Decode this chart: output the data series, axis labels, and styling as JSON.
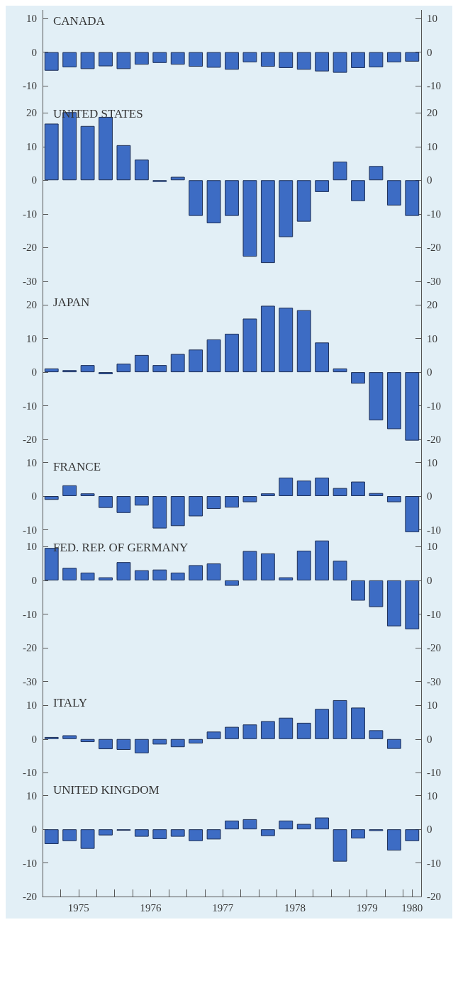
{
  "chart_data": [
    {
      "type": "bar",
      "title": "CANADA",
      "color": "#3d6cc4",
      "tick_labels": "y",
      "xlim": [
        1975,
        1980.25
      ],
      "ylim": [
        -15,
        12.5
      ],
      "yticks": [
        -10,
        0,
        10
      ],
      "y2lim": [
        -15,
        12.5
      ],
      "y2ticks": [
        -10,
        0,
        10
      ],
      "x": [
        1975.125,
        1975.375,
        1975.625,
        1975.875,
        1976.125,
        1976.375,
        1976.625,
        1976.875,
        1977.125,
        1977.375,
        1977.625,
        1977.875,
        1978.125,
        1978.375,
        1978.625,
        1978.875,
        1979.125,
        1979.375,
        1979.625,
        1979.875,
        1980.125
      ],
      "values": [
        -5.5,
        -4.5,
        -5,
        -4.2,
        -5,
        -3.7,
        -3.2,
        -3.7,
        -4.3,
        -4.6,
        -5.2,
        -3,
        -4.3,
        -4.7,
        -5.2,
        -5.7,
        -6.1,
        -4.7,
        -4.5,
        -3,
        -2.8
      ]
    },
    {
      "type": "bar",
      "title": "UNITED STATES",
      "color": "#3d6cc4",
      "tick_labels": "y",
      "xlim": [
        1975,
        1980.25
      ],
      "ylim": [
        -33,
        23
      ],
      "yticks": [
        -30,
        -20,
        -10,
        0,
        10,
        20
      ],
      "y2lim": [
        -33,
        23
      ],
      "y2ticks": [
        -30,
        -20,
        -10,
        0,
        10,
        20
      ],
      "x": [
        1975.125,
        1975.375,
        1975.625,
        1975.875,
        1976.125,
        1976.375,
        1976.625,
        1976.875,
        1977.125,
        1977.375,
        1977.625,
        1977.875,
        1978.125,
        1978.375,
        1978.625,
        1978.875,
        1979.125,
        1979.375,
        1979.625,
        1979.875,
        1980.125
      ],
      "values": [
        16.8,
        20.2,
        16.1,
        18.8,
        10.4,
        6.1,
        -0.5,
        1,
        -10.6,
        -12.8,
        -10.6,
        -22.7,
        -24.6,
        -16.9,
        -12.3,
        -3.5,
        5.5,
        -6.2,
        4.2,
        -7.5,
        -10.6
      ]
    },
    {
      "type": "bar",
      "title": "JAPAN",
      "color": "#3d6cc4",
      "tick_labels": "y",
      "xlim": [
        1975,
        1980.25
      ],
      "ylim": [
        -25,
        24
      ],
      "yticks": [
        -20,
        -10,
        0,
        10,
        20
      ],
      "y2lim": [
        -25,
        24
      ],
      "y2ticks": [
        -20,
        -10,
        0,
        10,
        20
      ],
      "x": [
        1975.125,
        1975.375,
        1975.625,
        1975.875,
        1976.125,
        1976.375,
        1976.625,
        1976.875,
        1977.125,
        1977.375,
        1977.625,
        1977.875,
        1978.125,
        1978.375,
        1978.625,
        1978.875,
        1979.125,
        1979.375,
        1979.625,
        1979.875,
        1980.125
      ],
      "values": [
        1.1,
        0.6,
        2.1,
        -0.6,
        2.5,
        5.1,
        2.1,
        5.4,
        6.7,
        9.7,
        11.4,
        15.9,
        19.7,
        19.1,
        18.4,
        8.8,
        1.1,
        -3.4,
        -14.3,
        -16.9,
        -20.3
      ]
    },
    {
      "type": "bar",
      "title": "FRANCE",
      "color": "#3d6cc4",
      "tick_labels": "y",
      "xlim": [
        1975,
        1980.25
      ],
      "ylim": [
        -12,
        12
      ],
      "yticks": [
        -10,
        0,
        10
      ],
      "y2lim": [
        -12,
        12
      ],
      "y2ticks": [
        -10,
        0,
        10
      ],
      "x": [
        1975.125,
        1975.375,
        1975.625,
        1975.875,
        1976.125,
        1976.375,
        1976.625,
        1976.875,
        1977.125,
        1977.375,
        1977.625,
        1977.875,
        1978.125,
        1978.375,
        1978.625,
        1978.875,
        1979.125,
        1979.375,
        1979.625,
        1979.875,
        1980.125
      ],
      "values": [
        -1.1,
        3.2,
        0.8,
        -3.5,
        -5,
        -2.8,
        -9.6,
        -8.9,
        -6,
        -3.8,
        -3.4,
        -1.8,
        0.8,
        5.5,
        4.6,
        5.5,
        2.4,
        4.3,
        0.9,
        -1.8,
        -10.7
      ]
    },
    {
      "type": "bar",
      "title": "FED. REP. OF GERMANY",
      "color": "#3d6cc4",
      "tick_labels": "y",
      "xlim": [
        1975,
        1980.25
      ],
      "ylim": [
        -33,
        13
      ],
      "yticks": [
        -30,
        -20,
        -10,
        0,
        10
      ],
      "y2lim": [
        -33,
        13
      ],
      "y2ticks": [
        -30,
        -20,
        -10,
        0,
        10
      ],
      "x": [
        1975.125,
        1975.375,
        1975.625,
        1975.875,
        1976.125,
        1976.375,
        1976.625,
        1976.875,
        1977.125,
        1977.375,
        1977.625,
        1977.875,
        1978.125,
        1978.375,
        1978.625,
        1978.875,
        1979.125,
        1979.375,
        1979.625,
        1979.875,
        1980.125
      ],
      "values": [
        9.6,
        3.7,
        2.3,
        0.9,
        5.4,
        3,
        3.2,
        2.3,
        4.5,
        5,
        -1.6,
        8.7,
        8,
        0.9,
        8.8,
        11.8,
        5.8,
        -6,
        -7.9,
        -13.6,
        -14.5
      ]
    },
    {
      "type": "bar",
      "title": "ITALY",
      "color": "#3d6cc4",
      "tick_labels": "y",
      "xlim": [
        1975,
        1980.25
      ],
      "ylim": [
        -12,
        14
      ],
      "yticks": [
        -10,
        0,
        10
      ],
      "y2lim": [
        -12,
        14
      ],
      "y2ticks": [
        -10,
        0,
        10
      ],
      "x": [
        1975.125,
        1975.375,
        1975.625,
        1975.875,
        1976.125,
        1976.375,
        1976.625,
        1976.875,
        1977.125,
        1977.375,
        1977.625,
        1977.875,
        1978.125,
        1978.375,
        1978.625,
        1978.875,
        1979.125,
        1979.375,
        1979.625,
        1979.875
      ],
      "values": [
        0.6,
        1.1,
        -0.9,
        -3,
        -3.2,
        -4.2,
        -1.6,
        -2.4,
        -1.3,
        2.2,
        3.6,
        4.3,
        5.3,
        6.3,
        4.8,
        8.9,
        11.5,
        9.3,
        2.6,
        -2.9
      ]
    },
    {
      "type": "bar",
      "title": "UNITED KINGDOM",
      "color": "#3d6cc4",
      "xlim": [
        1975,
        1980.25
      ],
      "ylim": [
        -20,
        15
      ],
      "yticks": [
        -20,
        -10,
        0,
        10
      ],
      "y2lim": [
        -20,
        15
      ],
      "y2ticks": [
        -20,
        -10,
        0,
        10
      ],
      "xticks": [
        {
          "value": 1975.25,
          "label": null
        },
        {
          "value": 1975.5,
          "label": "1975"
        },
        {
          "value": 1975.75,
          "label": null
        },
        {
          "value": 1976,
          "label": null
        },
        {
          "value": 1976.25,
          "label": null
        },
        {
          "value": 1976.5,
          "label": "1976"
        },
        {
          "value": 1976.75,
          "label": null
        },
        {
          "value": 1977,
          "label": null
        },
        {
          "value": 1977.25,
          "label": null
        },
        {
          "value": 1977.5,
          "label": "1977"
        },
        {
          "value": 1977.75,
          "label": null
        },
        {
          "value": 1978,
          "label": null
        },
        {
          "value": 1978.25,
          "label": null
        },
        {
          "value": 1978.5,
          "label": "1978"
        },
        {
          "value": 1978.75,
          "label": null
        },
        {
          "value": 1979,
          "label": null
        },
        {
          "value": 1979.25,
          "label": null
        },
        {
          "value": 1979.5,
          "label": "1979"
        },
        {
          "value": 1979.75,
          "label": null
        },
        {
          "value": 1980,
          "label": null
        },
        {
          "value": 1980.125,
          "label": "1980"
        }
      ],
      "x": [
        1975.125,
        1975.375,
        1975.625,
        1975.875,
        1976.125,
        1976.375,
        1976.625,
        1976.875,
        1977.125,
        1977.375,
        1977.625,
        1977.875,
        1978.125,
        1978.375,
        1978.625,
        1978.875,
        1979.125,
        1979.375,
        1979.625,
        1979.875,
        1980.125
      ],
      "values": [
        -4.4,
        -3.5,
        -5.8,
        -1.8,
        -0.4,
        -2.2,
        -2.9,
        -2.2,
        -3.5,
        -3,
        2.6,
        3,
        -2,
        2.6,
        1.6,
        3.5,
        -9.6,
        -2.7,
        -0.5,
        -6.3,
        -3.5
      ]
    }
  ]
}
